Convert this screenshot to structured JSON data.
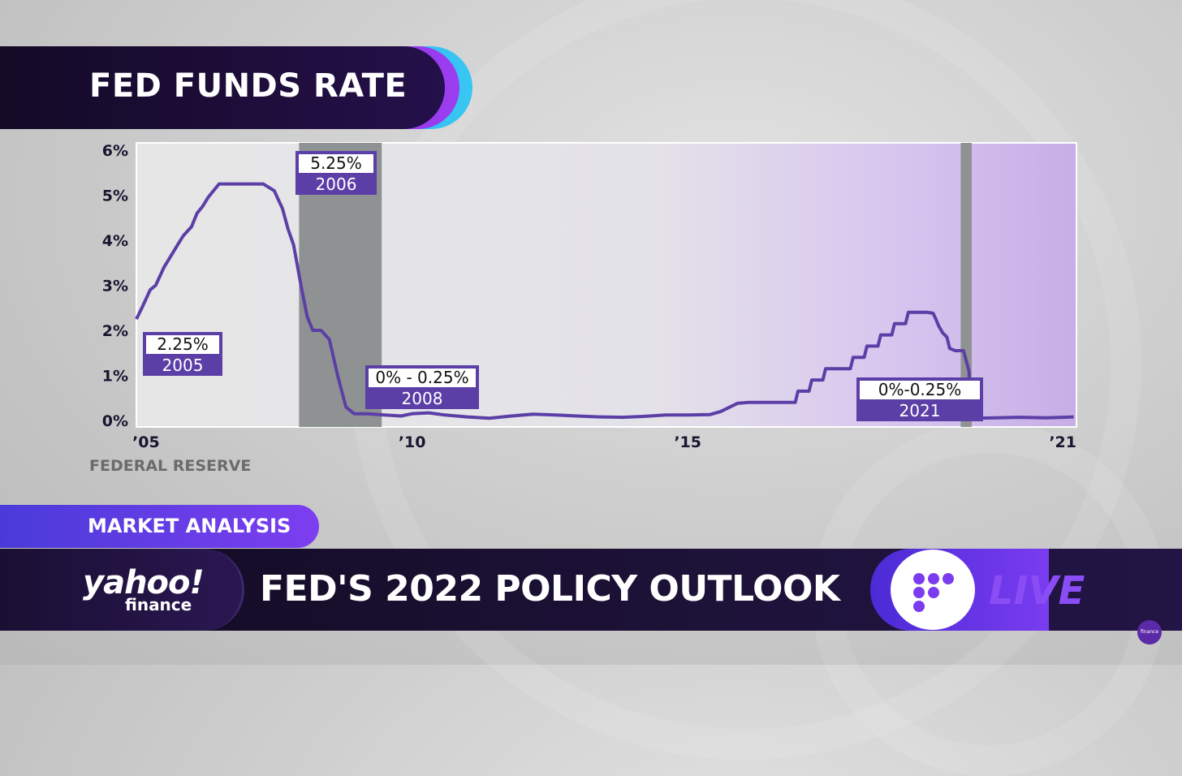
{
  "title": "FED FUNDS RATE",
  "source": "FEDERAL RESERVE",
  "market_tag": "MARKET ANALYSIS",
  "headline": "FED'S 2022 POLICY OUTLOOK",
  "logo": {
    "yahoo": "yahoo!",
    "finance": "finance"
  },
  "live_label": "LIVE",
  "corner_badge": "finance",
  "colors": {
    "line": "#5b3fa6",
    "label_bg": "#5b3fa6",
    "recession": "#8f9293",
    "accent": "#7b3cf0"
  },
  "chart_data": {
    "type": "line",
    "title": "FED FUNDS RATE",
    "xlabel": "",
    "ylabel": "",
    "xlim": [
      2005,
      2022.05
    ],
    "ylim": [
      0,
      6
    ],
    "y_ticks": [
      "0%",
      "1%",
      "2%",
      "3%",
      "4%",
      "5%",
      "6%"
    ],
    "x_ticks": [
      {
        "value": 2005,
        "label": "’05"
      },
      {
        "value": 2010,
        "label": "’10"
      },
      {
        "value": 2015,
        "label": "’15"
      },
      {
        "value": 2021.85,
        "label": "’21"
      }
    ],
    "grid": false,
    "recession_shading": [
      [
        2007.95,
        2009.45
      ],
      [
        2019.95,
        2020.15
      ]
    ],
    "series": [
      {
        "x": [
          2005.0,
          2005.1,
          2005.25,
          2005.35,
          2005.5,
          2005.6,
          2005.75,
          2005.85,
          2006.0,
          2006.1,
          2006.2,
          2006.3,
          2006.4,
          2006.5,
          2006.7,
          2007.0,
          2007.3,
          2007.5,
          2007.65,
          2007.75,
          2007.85,
          2008.0,
          2008.1,
          2008.2,
          2008.35,
          2008.5,
          2008.65,
          2008.8,
          2008.95,
          2009.2,
          2009.5,
          2009.8,
          2010.0,
          2010.3,
          2010.6,
          2011.0,
          2011.4,
          2011.8,
          2012.2,
          2012.6,
          2013.0,
          2013.4,
          2013.8,
          2014.2,
          2014.6,
          2015.0,
          2015.4,
          2015.6,
          2015.9,
          2016.1,
          2016.4,
          2016.95,
          2017.0,
          2017.2,
          2017.25,
          2017.45,
          2017.5,
          2017.95,
          2018.0,
          2018.2,
          2018.25,
          2018.45,
          2018.5,
          2018.7,
          2018.75,
          2018.95,
          2019.0,
          2019.35,
          2019.45,
          2019.5,
          2019.55,
          2019.62,
          2019.7,
          2019.75,
          2019.85,
          2019.95,
          2020.0,
          2020.1,
          2020.15,
          2020.2,
          2020.6,
          2021.0,
          2021.5,
          2021.8,
          2022.0
        ],
        "values": [
          2.25,
          2.5,
          2.9,
          3.0,
          3.4,
          3.6,
          3.9,
          4.1,
          4.3,
          4.6,
          4.75,
          4.95,
          5.1,
          5.25,
          5.25,
          5.25,
          5.25,
          5.1,
          4.7,
          4.25,
          3.9,
          2.9,
          2.3,
          2.0,
          2.0,
          1.8,
          1.0,
          0.3,
          0.15,
          0.15,
          0.12,
          0.1,
          0.15,
          0.17,
          0.12,
          0.08,
          0.05,
          0.1,
          0.14,
          0.12,
          0.1,
          0.08,
          0.07,
          0.09,
          0.12,
          0.12,
          0.13,
          0.2,
          0.38,
          0.4,
          0.4,
          0.4,
          0.65,
          0.65,
          0.9,
          0.9,
          1.15,
          1.15,
          1.4,
          1.4,
          1.65,
          1.65,
          1.9,
          1.9,
          2.15,
          2.15,
          2.4,
          2.4,
          2.38,
          2.25,
          2.1,
          1.95,
          1.85,
          1.6,
          1.55,
          1.55,
          1.55,
          1.1,
          0.1,
          0.05,
          0.06,
          0.07,
          0.06,
          0.07,
          0.08
        ]
      }
    ],
    "annotations": [
      {
        "top": "2.25%",
        "bottom": "2005"
      },
      {
        "top": "5.25%",
        "bottom": "2006"
      },
      {
        "top": "0% - 0.25%",
        "bottom": "2008"
      },
      {
        "top": "0%-0.25%",
        "bottom": "2021"
      }
    ]
  }
}
